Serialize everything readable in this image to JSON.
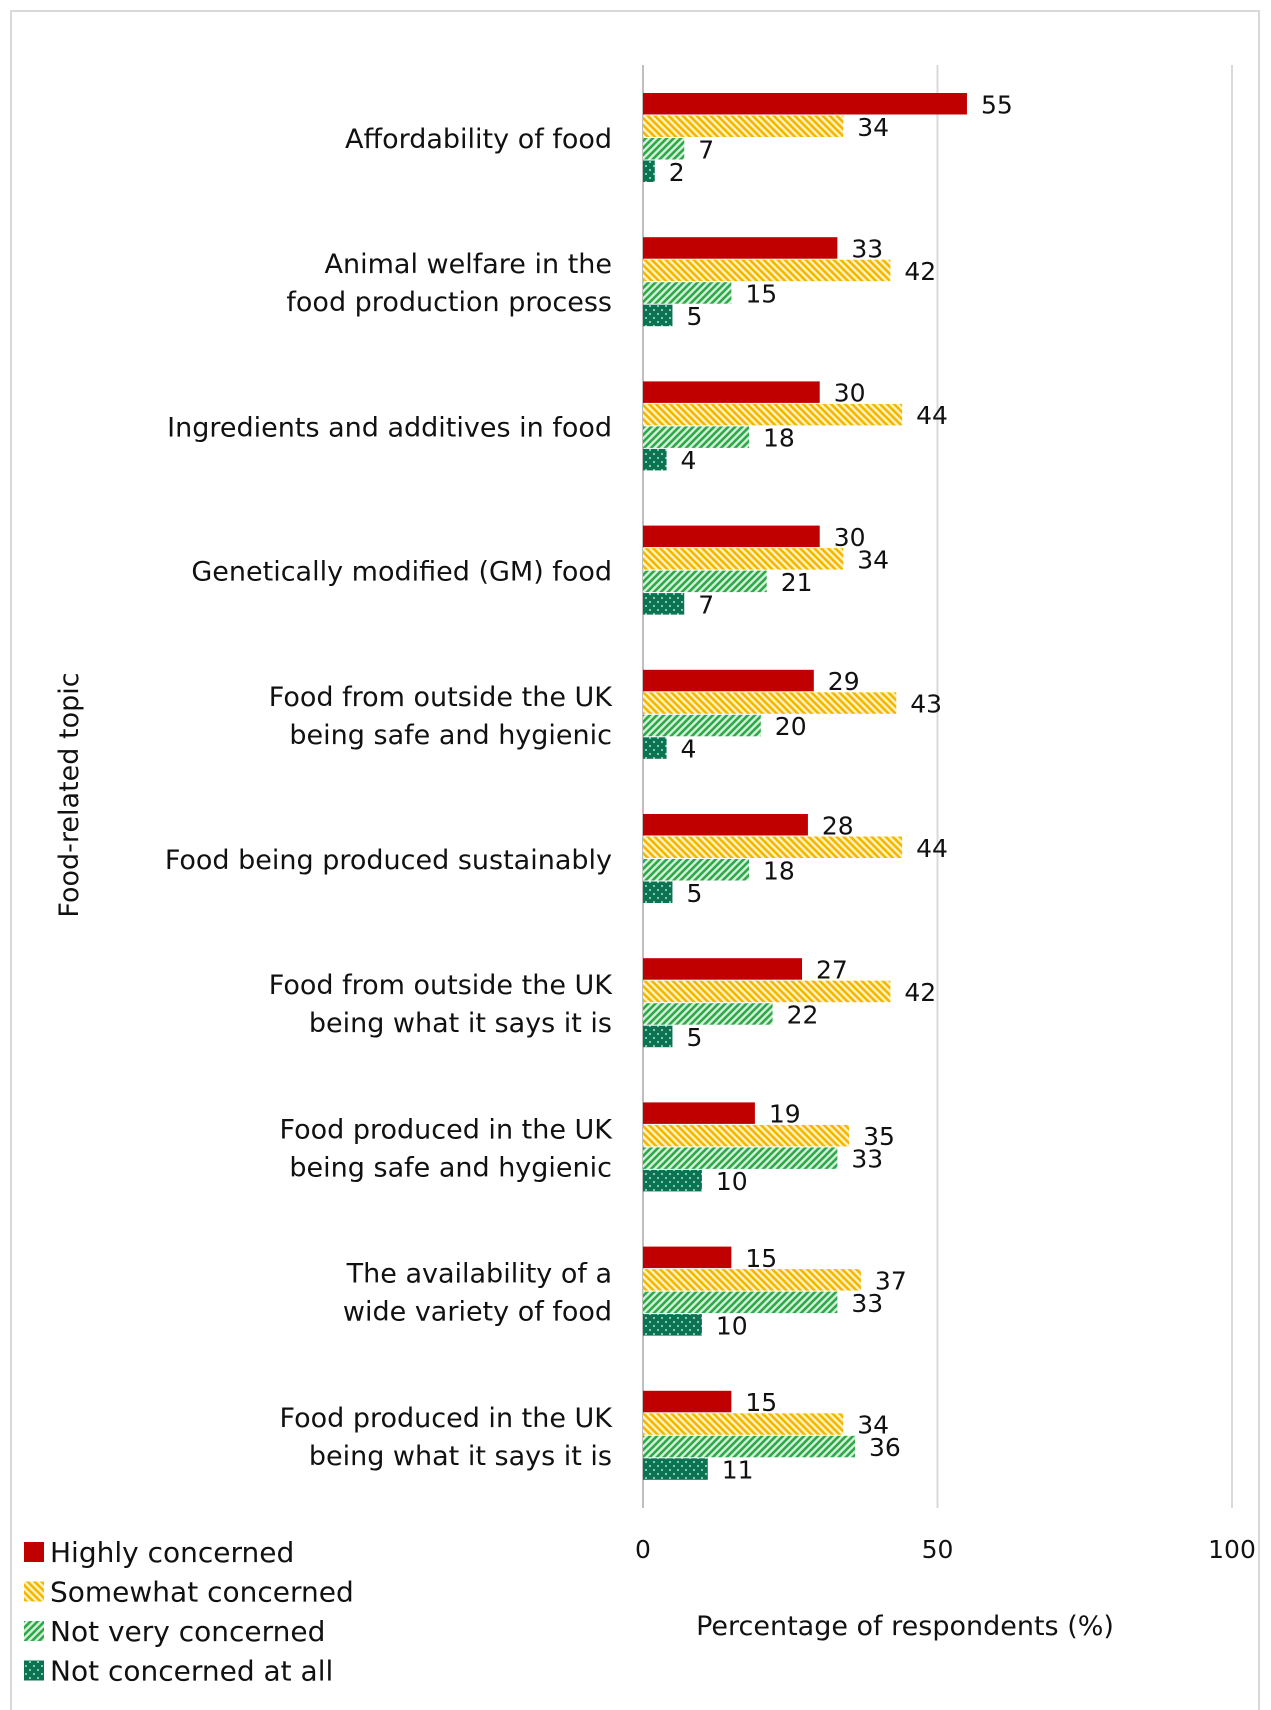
{
  "chart_data": {
    "type": "bar",
    "orientation": "horizontal",
    "xlabel": "Percentage of respondents (%)",
    "ylabel": "Food-related topic",
    "xlim": [
      0,
      100
    ],
    "xticks": [
      "0",
      "50",
      "100"
    ],
    "grid": true,
    "legend_position": "bottom-left",
    "categories": [
      [
        "Affordability of food"
      ],
      [
        "Animal welfare in the",
        "food production process"
      ],
      [
        "Ingredients and additives in food"
      ],
      [
        "Genetically modified (GM) food"
      ],
      [
        "Food from outside the UK",
        "being safe and hygienic"
      ],
      [
        "Food being produced sustainably"
      ],
      [
        "Food from outside the UK",
        "being what it says it is"
      ],
      [
        "Food produced in the UK",
        "being safe and hygienic"
      ],
      [
        "The availability of a",
        "wide variety of food"
      ],
      [
        "Food produced in the UK",
        "being what it says it is"
      ]
    ],
    "series": [
      {
        "name": "Highly concerned",
        "color": "#c00000",
        "pattern": "solid",
        "values": [
          55,
          33,
          30,
          30,
          29,
          28,
          27,
          19,
          15,
          15
        ]
      },
      {
        "name": "Somewhat concerned",
        "color": "#f5b800",
        "pattern": "diagonal-down",
        "values": [
          34,
          42,
          44,
          34,
          43,
          44,
          42,
          35,
          37,
          34
        ]
      },
      {
        "name": "Not very concerned",
        "color": "#2eaa4a",
        "pattern": "diagonal-up",
        "values": [
          7,
          15,
          18,
          21,
          20,
          18,
          22,
          33,
          33,
          36
        ]
      },
      {
        "name": "Not concerned at all",
        "color": "#0b7352",
        "pattern": "dots",
        "values": [
          2,
          5,
          4,
          7,
          4,
          5,
          5,
          10,
          10,
          11
        ]
      }
    ]
  }
}
